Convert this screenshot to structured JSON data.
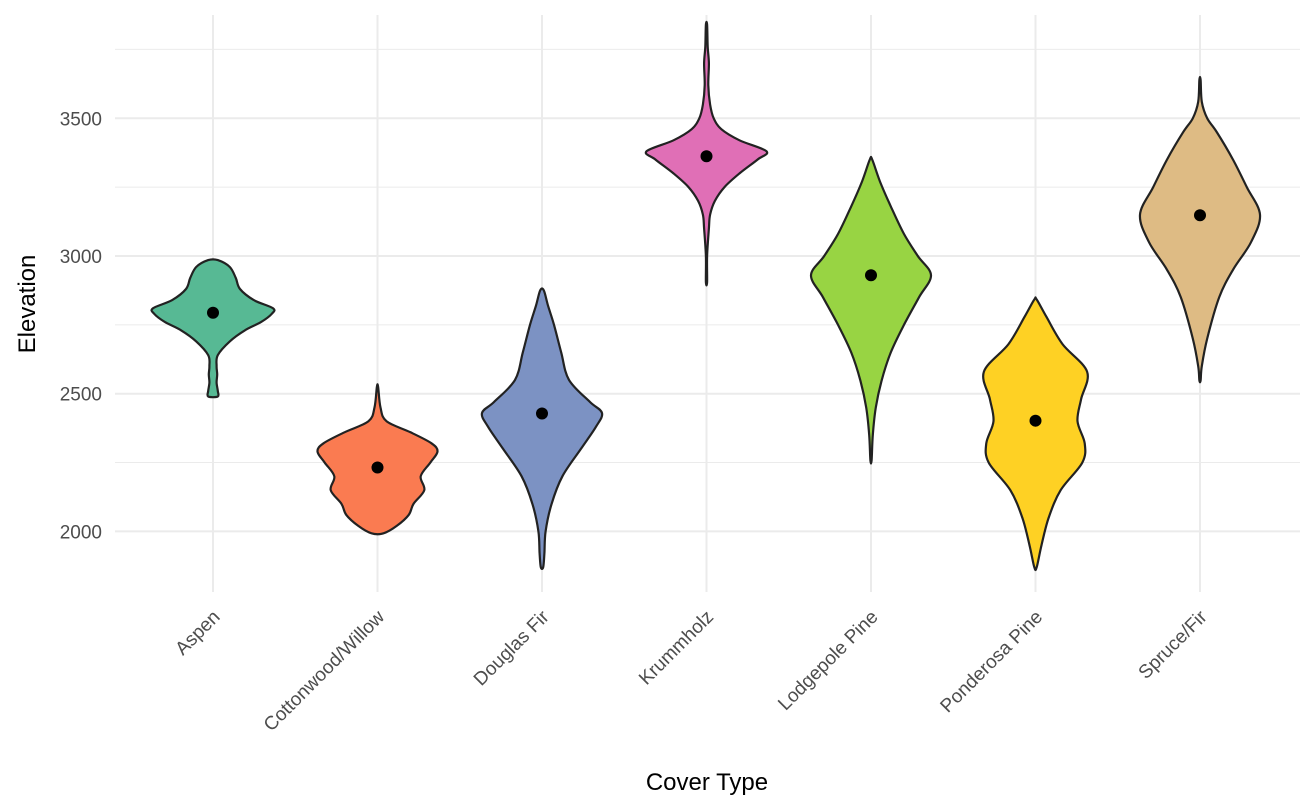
{
  "chart_data": {
    "type": "violin",
    "title": "",
    "xlabel": "Cover Type",
    "ylabel": "Elevation",
    "ylim": [
      1780,
      3875
    ],
    "y_ticks": [
      2000,
      2500,
      3000,
      3500
    ],
    "y_tick_labels": [
      "2000",
      "2500",
      "3000",
      "3500"
    ],
    "grid": true,
    "legend": "none",
    "categories": [
      "Aspen",
      "Cottonwood/Willow",
      "Douglas Fir",
      "Krummholz",
      "Lodgepole Pine",
      "Ponderosa Pine",
      "Spruce/Fir"
    ],
    "colors": [
      "#57B994",
      "#FA7B51",
      "#7C92C3",
      "#E06FB6",
      "#98D443",
      "#FED124",
      "#DEBB84"
    ],
    "means": [
      2794,
      2232,
      2428,
      3362,
      2930,
      2402,
      3148
    ],
    "density_profiles": [
      {
        "category": "Aspen",
        "profile": [
          [
            2490,
            0.08
          ],
          [
            2510,
            0.08
          ],
          [
            2540,
            0.06
          ],
          [
            2570,
            0.07
          ],
          [
            2600,
            0.06
          ],
          [
            2640,
            0.08
          ],
          [
            2690,
            0.28
          ],
          [
            2730,
            0.53
          ],
          [
            2760,
            0.8
          ],
          [
            2790,
            0.98
          ],
          [
            2810,
            1.0
          ],
          [
            2840,
            0.68
          ],
          [
            2880,
            0.45
          ],
          [
            2920,
            0.38
          ],
          [
            2960,
            0.28
          ],
          [
            2985,
            0.08
          ]
        ]
      },
      {
        "category": "Cottonwood/Willow",
        "profile": [
          [
            1993,
            0.1
          ],
          [
            2020,
            0.32
          ],
          [
            2060,
            0.52
          ],
          [
            2100,
            0.6
          ],
          [
            2150,
            0.78
          ],
          [
            2200,
            0.72
          ],
          [
            2250,
            0.88
          ],
          [
            2290,
            1.0
          ],
          [
            2320,
            0.9
          ],
          [
            2360,
            0.55
          ],
          [
            2400,
            0.15
          ],
          [
            2450,
            0.05
          ],
          [
            2525,
            0.01
          ]
        ]
      },
      {
        "category": "Douglas Fir",
        "profile": [
          [
            1870,
            0.02
          ],
          [
            1920,
            0.04
          ],
          [
            2000,
            0.06
          ],
          [
            2100,
            0.16
          ],
          [
            2200,
            0.34
          ],
          [
            2300,
            0.65
          ],
          [
            2380,
            0.9
          ],
          [
            2430,
            1.0
          ],
          [
            2470,
            0.8
          ],
          [
            2550,
            0.45
          ],
          [
            2650,
            0.32
          ],
          [
            2750,
            0.2
          ],
          [
            2820,
            0.1
          ],
          [
            2875,
            0.03
          ]
        ]
      },
      {
        "category": "Krummholz",
        "profile": [
          [
            2905,
            0.01
          ],
          [
            3000,
            0.01
          ],
          [
            3100,
            0.04
          ],
          [
            3150,
            0.06
          ],
          [
            3200,
            0.14
          ],
          [
            3250,
            0.3
          ],
          [
            3300,
            0.55
          ],
          [
            3350,
            0.85
          ],
          [
            3380,
            1.0
          ],
          [
            3420,
            0.55
          ],
          [
            3460,
            0.25
          ],
          [
            3500,
            0.12
          ],
          [
            3550,
            0.06
          ],
          [
            3620,
            0.03
          ],
          [
            3700,
            0.04
          ],
          [
            3760,
            0.02
          ],
          [
            3840,
            0.01
          ]
        ]
      },
      {
        "category": "Lodgepole Pine",
        "profile": [
          [
            2258,
            0.01
          ],
          [
            2350,
            0.03
          ],
          [
            2450,
            0.08
          ],
          [
            2550,
            0.18
          ],
          [
            2650,
            0.33
          ],
          [
            2750,
            0.55
          ],
          [
            2850,
            0.8
          ],
          [
            2930,
            1.0
          ],
          [
            3000,
            0.78
          ],
          [
            3080,
            0.55
          ],
          [
            3180,
            0.33
          ],
          [
            3270,
            0.15
          ],
          [
            3350,
            0.02
          ]
        ]
      },
      {
        "category": "Ponderosa Pine",
        "profile": [
          [
            1870,
            0.02
          ],
          [
            1950,
            0.1
          ],
          [
            2050,
            0.22
          ],
          [
            2150,
            0.42
          ],
          [
            2250,
            0.78
          ],
          [
            2320,
            0.82
          ],
          [
            2400,
            0.7
          ],
          [
            2480,
            0.76
          ],
          [
            2580,
            0.86
          ],
          [
            2680,
            0.45
          ],
          [
            2780,
            0.18
          ],
          [
            2842,
            0.02
          ]
        ]
      },
      {
        "category": "Spruce/Fir",
        "profile": [
          [
            2548,
            0.01
          ],
          [
            2600,
            0.03
          ],
          [
            2700,
            0.12
          ],
          [
            2850,
            0.32
          ],
          [
            2950,
            0.55
          ],
          [
            3050,
            0.85
          ],
          [
            3150,
            1.0
          ],
          [
            3250,
            0.78
          ],
          [
            3350,
            0.55
          ],
          [
            3450,
            0.28
          ],
          [
            3500,
            0.12
          ],
          [
            3560,
            0.03
          ],
          [
            3640,
            0.01
          ]
        ]
      }
    ]
  }
}
